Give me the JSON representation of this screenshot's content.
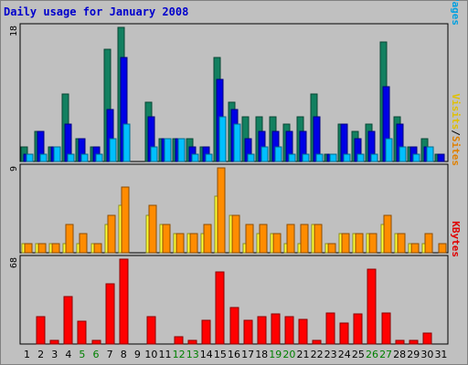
{
  "chart_data": {
    "type": "bar",
    "title": "Daily usage for January 2008",
    "categories": [
      "1",
      "2",
      "3",
      "4",
      "5",
      "6",
      "7",
      "8",
      "9",
      "10",
      "11",
      "12",
      "13",
      "14",
      "15",
      "16",
      "17",
      "18",
      "19",
      "20",
      "21",
      "22",
      "23",
      "24",
      "25",
      "26",
      "27",
      "28",
      "29",
      "30",
      "31"
    ],
    "weekend_days": [
      "5",
      "6",
      "12",
      "13",
      "19",
      "20",
      "26",
      "27"
    ],
    "panels": [
      {
        "id": "top",
        "max_label": "18",
        "ylim": [
          0,
          18
        ],
        "right_labels": [
          {
            "text": "Hits",
            "color": "#008080"
          },
          {
            "text": "/",
            "color": "#000000"
          },
          {
            "text": "Files",
            "color": "#0000c0"
          },
          {
            "text": "/",
            "color": "#000000"
          },
          {
            "text": "Pages",
            "color": "#00a0e0"
          }
        ],
        "series": [
          {
            "name": "Hits",
            "color": "#128060",
            "values": [
              2,
              4,
              2,
              9,
              3,
              2,
              15,
              18,
              0,
              8,
              3,
              3,
              3,
              2,
              14,
              8,
              6,
              6,
              6,
              5,
              6,
              9,
              1,
              5,
              4,
              5,
              16,
              6,
              2,
              3,
              1
            ]
          },
          {
            "name": "Files",
            "color": "#0000e6",
            "values": [
              1,
              4,
              2,
              5,
              3,
              2,
              7,
              14,
              0,
              6,
              3,
              3,
              2,
              2,
              11,
              7,
              3,
              4,
              4,
              4,
              4,
              6,
              1,
              5,
              3,
              4,
              10,
              5,
              2,
              2,
              1
            ]
          },
          {
            "name": "Pages",
            "color": "#00c0ff",
            "values": [
              1,
              1,
              2,
              1,
              1,
              1,
              3,
              5,
              0,
              2,
              3,
              3,
              1,
              1,
              6,
              5,
              1,
              2,
              2,
              1,
              1,
              1,
              1,
              1,
              1,
              1,
              3,
              2,
              1,
              2,
              0
            ]
          }
        ]
      },
      {
        "id": "mid",
        "max_label": "9",
        "ylim": [
          0,
          9
        ],
        "right_labels": [
          {
            "text": "Visits",
            "color": "#e0c000"
          },
          {
            "text": "/",
            "color": "#000000"
          },
          {
            "text": "Sites",
            "color": "#e08000"
          }
        ],
        "series": [
          {
            "name": "Visits",
            "color": "#ffff33",
            "values": [
              1,
              1,
              1,
              1,
              1,
              1,
              3,
              5,
              0,
              4,
              3,
              2,
              2,
              2,
              6,
              4,
              1,
              2,
              2,
              1,
              1,
              3,
              1,
              2,
              2,
              2,
              3,
              2,
              1,
              1,
              0
            ]
          },
          {
            "name": "Sites",
            "color": "#ff8c00",
            "values": [
              1,
              1,
              1,
              3,
              2,
              1,
              4,
              7,
              0,
              5,
              3,
              2,
              2,
              3,
              9,
              4,
              3,
              3,
              2,
              3,
              3,
              3,
              1,
              2,
              2,
              2,
              4,
              2,
              1,
              2,
              1
            ]
          }
        ]
      },
      {
        "id": "bot",
        "max_label": "68",
        "ylim": [
          0,
          68
        ],
        "right_labels": [
          {
            "text": "KBytes",
            "color": "#e00000"
          }
        ],
        "series": [
          {
            "name": "KBytes",
            "color": "#ff0000",
            "values": [
              0,
              22,
              3,
              38,
              18,
              3,
              48,
              68,
              0,
              22,
              0,
              6,
              3,
              19,
              58,
              29,
              19,
              22,
              24,
              22,
              20,
              3,
              25,
              17,
              24,
              60,
              25,
              3,
              3,
              9,
              0
            ]
          }
        ]
      }
    ]
  }
}
